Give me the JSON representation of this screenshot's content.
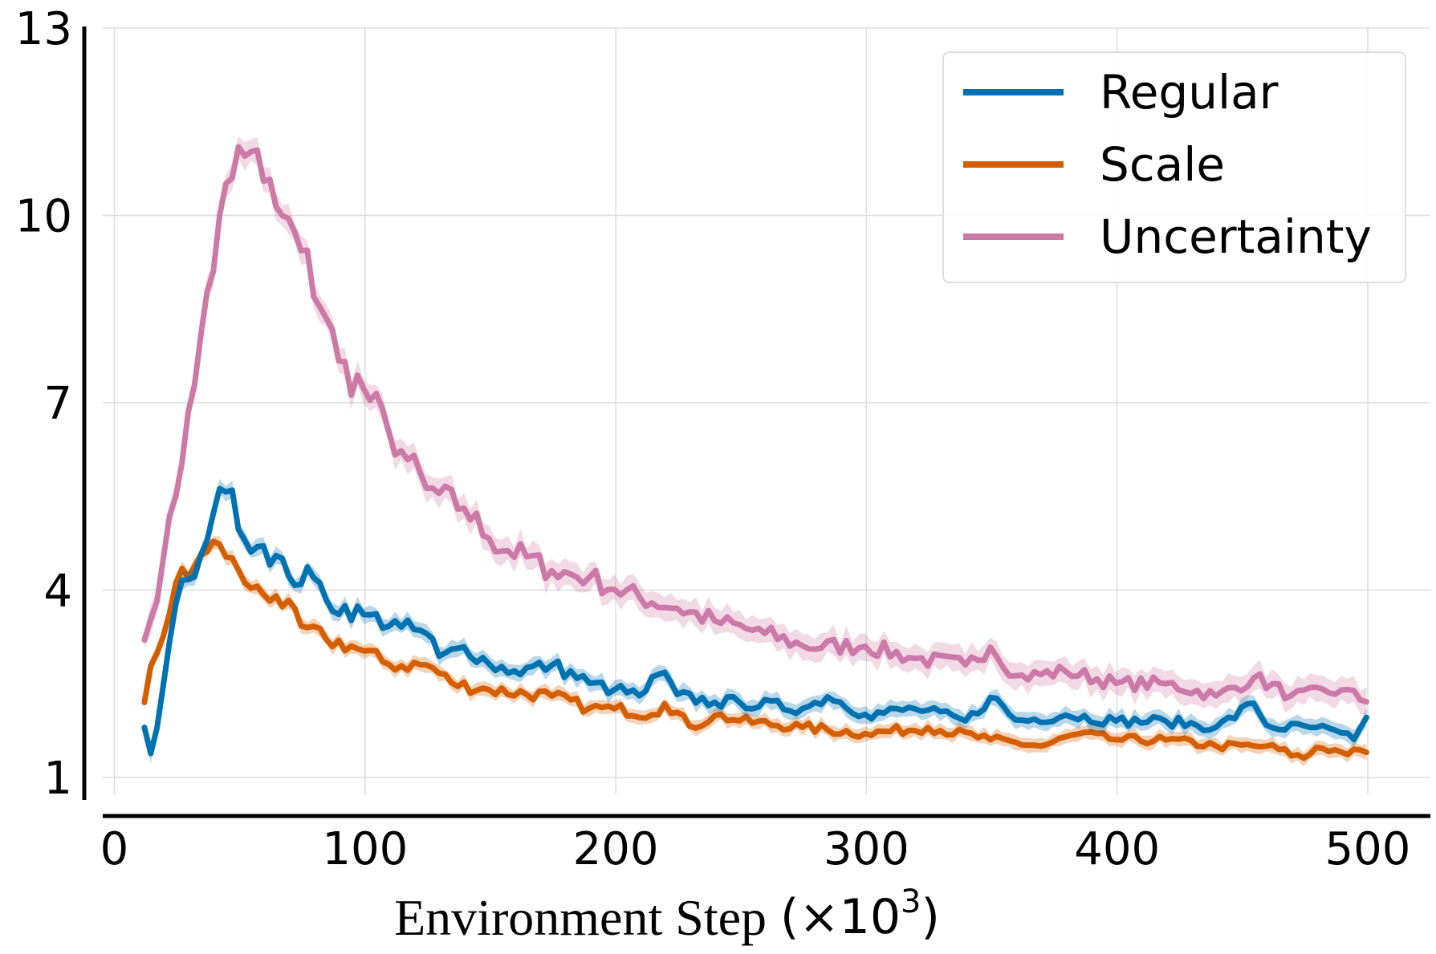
{
  "chart_data": {
    "type": "line",
    "title": "",
    "xlabel": "Environment Step",
    "xlabel_unit": "(×10",
    "xlabel_exp": "3",
    "xlabel_close": ")",
    "ylabel": "",
    "xlim": [
      -12,
      525
    ],
    "ylim": [
      0.6,
      13
    ],
    "xticks": [
      0,
      100,
      200,
      300,
      400,
      500
    ],
    "xtick_labels": [
      "0",
      "100",
      "200",
      "300",
      "400",
      "500"
    ],
    "yticks": [
      1,
      4,
      7,
      10,
      13
    ],
    "ytick_labels": [
      "1",
      "4",
      "7",
      "10",
      "13"
    ],
    "grid": true,
    "legend_position": "top-right",
    "series": [
      {
        "name": "Regular",
        "color": "#0072B2",
        "keypoints": [
          [
            12,
            1.8
          ],
          [
            15,
            1.3
          ],
          [
            20,
            2.6
          ],
          [
            25,
            3.9
          ],
          [
            30,
            4.2
          ],
          [
            35,
            4.6
          ],
          [
            40,
            5.3
          ],
          [
            45,
            5.6
          ],
          [
            47,
            5.6
          ],
          [
            52,
            4.8
          ],
          [
            60,
            4.7
          ],
          [
            70,
            4.2
          ],
          [
            80,
            4.2
          ],
          [
            85,
            3.8
          ],
          [
            100,
            3.6
          ],
          [
            115,
            3.4
          ],
          [
            125,
            3.3
          ],
          [
            130,
            2.9
          ],
          [
            140,
            3.1
          ],
          [
            150,
            2.8
          ],
          [
            160,
            2.7
          ],
          [
            175,
            2.8
          ],
          [
            190,
            2.5
          ],
          [
            200,
            2.4
          ],
          [
            210,
            2.3
          ],
          [
            218,
            2.7
          ],
          [
            225,
            2.3
          ],
          [
            240,
            2.2
          ],
          [
            250,
            2.2
          ],
          [
            275,
            2.1
          ],
          [
            285,
            2.3
          ],
          [
            300,
            2.0
          ],
          [
            320,
            2.1
          ],
          [
            340,
            1.9
          ],
          [
            350,
            2.3
          ],
          [
            360,
            1.9
          ],
          [
            380,
            2.0
          ],
          [
            400,
            1.9
          ],
          [
            420,
            1.9
          ],
          [
            440,
            1.8
          ],
          [
            455,
            2.2
          ],
          [
            460,
            1.8
          ],
          [
            480,
            1.8
          ],
          [
            495,
            1.6
          ],
          [
            500,
            2.0
          ]
        ],
        "band": 0.14
      },
      {
        "name": "Scale",
        "color": "#D55E00",
        "keypoints": [
          [
            12,
            2.2
          ],
          [
            15,
            2.9
          ],
          [
            20,
            3.3
          ],
          [
            25,
            4.2
          ],
          [
            30,
            4.2
          ],
          [
            35,
            4.6
          ],
          [
            40,
            4.8
          ],
          [
            45,
            4.5
          ],
          [
            50,
            4.3
          ],
          [
            55,
            4.0
          ],
          [
            65,
            3.9
          ],
          [
            75,
            3.4
          ],
          [
            85,
            3.2
          ],
          [
            95,
            3.1
          ],
          [
            110,
            2.8
          ],
          [
            125,
            2.8
          ],
          [
            135,
            2.5
          ],
          [
            150,
            2.4
          ],
          [
            175,
            2.3
          ],
          [
            190,
            2.1
          ],
          [
            200,
            2.1
          ],
          [
            215,
            2.0
          ],
          [
            220,
            2.2
          ],
          [
            230,
            1.8
          ],
          [
            240,
            2.0
          ],
          [
            250,
            1.9
          ],
          [
            275,
            1.8
          ],
          [
            300,
            1.7
          ],
          [
            325,
            1.8
          ],
          [
            350,
            1.6
          ],
          [
            370,
            1.5
          ],
          [
            385,
            1.7
          ],
          [
            400,
            1.6
          ],
          [
            420,
            1.6
          ],
          [
            440,
            1.5
          ],
          [
            460,
            1.5
          ],
          [
            475,
            1.3
          ],
          [
            480,
            1.5
          ],
          [
            490,
            1.4
          ],
          [
            500,
            1.4
          ]
        ],
        "band": 0.12
      },
      {
        "name": "Uncertainty",
        "color": "#CC79A7",
        "keypoints": [
          [
            12,
            3.2
          ],
          [
            15,
            3.6
          ],
          [
            20,
            4.6
          ],
          [
            25,
            5.6
          ],
          [
            30,
            7.0
          ],
          [
            35,
            8.2
          ],
          [
            40,
            9.2
          ],
          [
            43,
            10.4
          ],
          [
            47,
            10.6
          ],
          [
            50,
            11.2
          ],
          [
            55,
            11.0
          ],
          [
            60,
            10.5
          ],
          [
            65,
            10.1
          ],
          [
            75,
            9.4
          ],
          [
            85,
            8.3
          ],
          [
            90,
            7.6
          ],
          [
            100,
            7.2
          ],
          [
            110,
            6.5
          ],
          [
            115,
            6.2
          ],
          [
            125,
            5.6
          ],
          [
            140,
            5.3
          ],
          [
            150,
            4.8
          ],
          [
            175,
            4.3
          ],
          [
            190,
            4.2
          ],
          [
            200,
            4.0
          ],
          [
            225,
            3.7
          ],
          [
            240,
            3.5
          ],
          [
            260,
            3.3
          ],
          [
            275,
            3.1
          ],
          [
            300,
            3.1
          ],
          [
            320,
            2.9
          ],
          [
            340,
            2.8
          ],
          [
            350,
            3.1
          ],
          [
            360,
            2.6
          ],
          [
            380,
            2.7
          ],
          [
            400,
            2.5
          ],
          [
            420,
            2.5
          ],
          [
            440,
            2.3
          ],
          [
            455,
            2.6
          ],
          [
            470,
            2.3
          ],
          [
            490,
            2.4
          ],
          [
            500,
            2.2
          ]
        ],
        "band": 0.22
      }
    ]
  }
}
